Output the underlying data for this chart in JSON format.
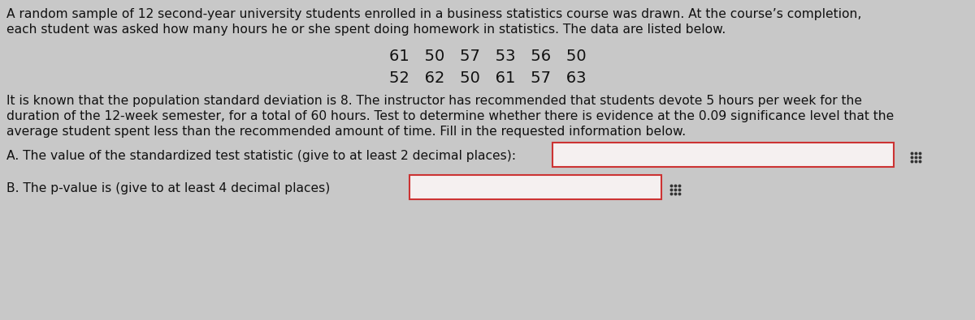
{
  "bg_color": "#c8c8c8",
  "text_color": "#111111",
  "para1_line1": "A random sample of 12 second-year university students enrolled in a business statistics course was drawn. At the course’s completion,",
  "para1_line2": "each student was asked how many hours he or she spent doing homework in statistics. The data are listed below.",
  "data_row1": "61   50   57   53   56   50",
  "data_row2": "52   62   50   61   57   63",
  "para2_line1": "It is known that the population standard deviation is 8. The instructor has recommended that students devote 5 hours per week for the",
  "para2_line2": "duration of the 12-week semester, for a total of 60 hours. Test to determine whether there is evidence at the 0.09 significance level that the",
  "para2_line3": "average student spent less than the recommended amount of time. Fill in the requested information below.",
  "labelA": "A. The value of the standardized test statistic (give to at least 2 decimal places):",
  "labelB": "B. The p-value is (give to at least 4 decimal places)",
  "box_fill": "#f5f0f0",
  "box_edge": "#cc3333",
  "grid_icon_color": "#333333",
  "font_size_body": 11.2,
  "font_size_data": 14.0
}
